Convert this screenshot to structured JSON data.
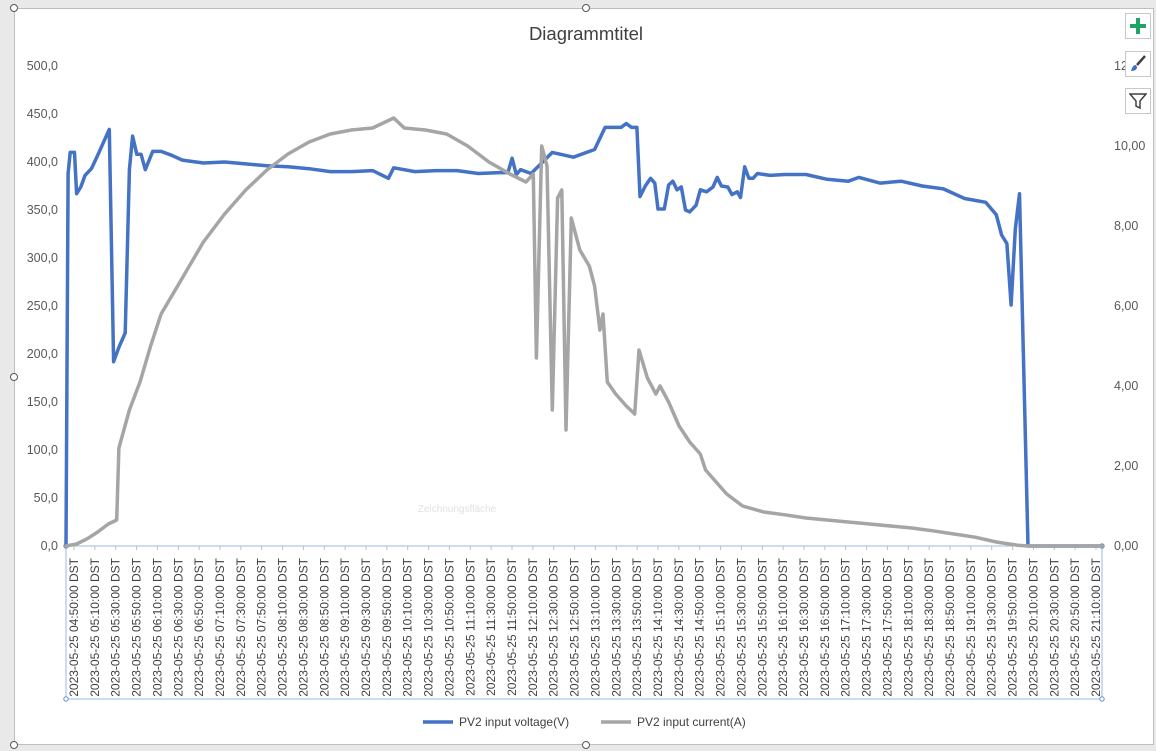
{
  "chart_data": {
    "type": "line",
    "title": "Diagrammtitel",
    "xlabel": "",
    "ylabel": "",
    "y_left_ticks": [
      "0,0",
      "50,0",
      "100,0",
      "150,0",
      "200,0",
      "250,0",
      "300,0",
      "350,0",
      "400,0",
      "450,0",
      "500,0"
    ],
    "y_right_ticks": [
      "0,00",
      "2,00",
      "4,00",
      "6,00",
      "8,00",
      "10,00",
      "12,00"
    ],
    "ylim_left": [
      0,
      500
    ],
    "ylim_right": [
      0,
      12
    ],
    "x_tick_labels": [
      "2023-05-25 04:50:00 DST",
      "2023-05-25 05:10:00 DST",
      "2023-05-25 05:30:00 DST",
      "2023-05-25 05:50:00 DST",
      "2023-05-25 06:10:00 DST",
      "2023-05-25 06:30:00 DST",
      "2023-05-25 06:50:00 DST",
      "2023-05-25 07:10:00 DST",
      "2023-05-25 07:30:00 DST",
      "2023-05-25 07:50:00 DST",
      "2023-05-25 08:10:00 DST",
      "2023-05-25 08:30:00 DST",
      "2023-05-25 08:50:00 DST",
      "2023-05-25 09:10:00 DST",
      "2023-05-25 09:30:00 DST",
      "2023-05-25 09:50:00 DST",
      "2023-05-25 10:10:00 DST",
      "2023-05-25 10:30:00 DST",
      "2023-05-25 10:50:00 DST",
      "2023-05-25 11:10:00 DST",
      "2023-05-25 11:30:00 DST",
      "2023-05-25 11:50:00 DST",
      "2023-05-25 12:10:00 DST",
      "2023-05-25 12:30:00 DST",
      "2023-05-25 12:50:00 DST",
      "2023-05-25 13:10:00 DST",
      "2023-05-25 13:30:00 DST",
      "2023-05-25 13:50:00 DST",
      "2023-05-25 14:10:00 DST",
      "2023-05-25 14:30:00 DST",
      "2023-05-25 14:50:00 DST",
      "2023-05-25 15:10:00 DST",
      "2023-05-25 15:30:00 DST",
      "2023-05-25 15:50:00 DST",
      "2023-05-25 16:10:00 DST",
      "2023-05-25 16:30:00 DST",
      "2023-05-25 16:50:00 DST",
      "2023-05-25 17:10:00 DST",
      "2023-05-25 17:30:00 DST",
      "2023-05-25 17:50:00 DST",
      "2023-05-25 18:10:00 DST",
      "2023-05-25 18:30:00 DST",
      "2023-05-25 18:50:00 DST",
      "2023-05-25 19:10:00 DST",
      "2023-05-25 19:30:00 DST",
      "2023-05-25 19:50:00 DST",
      "2023-05-25 20:10:00 DST",
      "2023-05-25 20:30:00 DST",
      "2023-05-25 20:50:00 DST",
      "2023-05-25 21:10:00 DST"
    ],
    "x_start": "2023-05-25 04:50:00 DST",
    "x_end": "2023-05-25 21:10:00 DST",
    "legend_position": "bottom",
    "grid": false,
    "series": [
      {
        "name": "PV2 input voltage(V)",
        "axis": "left",
        "color": "#4472c4",
        "points": [
          [
            "2023-05-25 04:50:00 DST",
            0
          ],
          [
            "2023-05-25 04:52:00 DST",
            388
          ],
          [
            "2023-05-25 04:54:00 DST",
            410
          ],
          [
            "2023-05-25 04:58:00 DST",
            410
          ],
          [
            "2023-05-25 05:00:00 DST",
            367
          ],
          [
            "2023-05-25 05:04:00 DST",
            374
          ],
          [
            "2023-05-25 05:08:00 DST",
            386
          ],
          [
            "2023-05-25 05:14:00 DST",
            393
          ],
          [
            "2023-05-25 05:20:00 DST",
            407
          ],
          [
            "2023-05-25 05:26:00 DST",
            422
          ],
          [
            "2023-05-25 05:31:00 DST",
            434
          ],
          [
            "2023-05-25 05:35:00 DST",
            192
          ],
          [
            "2023-05-25 05:40:00 DST",
            207
          ],
          [
            "2023-05-25 05:46:00 DST",
            222
          ],
          [
            "2023-05-25 05:50:00 DST",
            392
          ],
          [
            "2023-05-25 05:53:00 DST",
            427
          ],
          [
            "2023-05-25 05:57:00 DST",
            408
          ],
          [
            "2023-05-25 06:01:00 DST",
            408
          ],
          [
            "2023-05-25 06:05:00 DST",
            392
          ],
          [
            "2023-05-25 06:12:00 DST",
            411
          ],
          [
            "2023-05-25 06:20:00 DST",
            411
          ],
          [
            "2023-05-25 06:30:00 DST",
            407
          ],
          [
            "2023-05-25 06:40:00 DST",
            402
          ],
          [
            "2023-05-25 07:00:00 DST",
            399
          ],
          [
            "2023-05-25 07:20:00 DST",
            400
          ],
          [
            "2023-05-25 07:40:00 DST",
            398
          ],
          [
            "2023-05-25 08:00:00 DST",
            396
          ],
          [
            "2023-05-25 08:20:00 DST",
            395
          ],
          [
            "2023-05-25 08:40:00 DST",
            393
          ],
          [
            "2023-05-25 09:00:00 DST",
            390
          ],
          [
            "2023-05-25 09:20:00 DST",
            390
          ],
          [
            "2023-05-25 09:40:00 DST",
            391
          ],
          [
            "2023-05-25 09:55:00 DST",
            383
          ],
          [
            "2023-05-25 10:00:00 DST",
            394
          ],
          [
            "2023-05-25 10:20:00 DST",
            390
          ],
          [
            "2023-05-25 10:40:00 DST",
            391
          ],
          [
            "2023-05-25 11:00:00 DST",
            391
          ],
          [
            "2023-05-25 11:20:00 DST",
            388
          ],
          [
            "2023-05-25 11:40:00 DST",
            389
          ],
          [
            "2023-05-25 11:48:00 DST",
            389
          ],
          [
            "2023-05-25 11:52:00 DST",
            404
          ],
          [
            "2023-05-25 11:56:00 DST",
            387
          ],
          [
            "2023-05-25 12:00:00 DST",
            392
          ],
          [
            "2023-05-25 12:10:00 DST",
            388
          ],
          [
            "2023-05-25 12:30:00 DST",
            410
          ],
          [
            "2023-05-25 12:50:00 DST",
            405
          ],
          [
            "2023-05-25 13:10:00 DST",
            413
          ],
          [
            "2023-05-25 13:20:00 DST",
            436
          ],
          [
            "2023-05-25 13:35:00 DST",
            436
          ],
          [
            "2023-05-25 13:40:00 DST",
            440
          ],
          [
            "2023-05-25 13:45:00 DST",
            436
          ],
          [
            "2023-05-25 13:50:00 DST",
            436
          ],
          [
            "2023-05-25 13:53:00 DST",
            364
          ],
          [
            "2023-05-25 13:58:00 DST",
            375
          ],
          [
            "2023-05-25 14:03:00 DST",
            383
          ],
          [
            "2023-05-25 14:07:00 DST",
            378
          ],
          [
            "2023-05-25 14:10:00 DST",
            351
          ],
          [
            "2023-05-25 14:16:00 DST",
            351
          ],
          [
            "2023-05-25 14:20:00 DST",
            376
          ],
          [
            "2023-05-25 14:24:00 DST",
            380
          ],
          [
            "2023-05-25 14:28:00 DST",
            371
          ],
          [
            "2023-05-25 14:32:00 DST",
            374
          ],
          [
            "2023-05-25 14:36:00 DST",
            350
          ],
          [
            "2023-05-25 14:40:00 DST",
            348
          ],
          [
            "2023-05-25 14:46:00 DST",
            355
          ],
          [
            "2023-05-25 14:50:00 DST",
            371
          ],
          [
            "2023-05-25 14:56:00 DST",
            369
          ],
          [
            "2023-05-25 15:02:00 DST",
            374
          ],
          [
            "2023-05-25 15:06:00 DST",
            384
          ],
          [
            "2023-05-25 15:10:00 DST",
            375
          ],
          [
            "2023-05-25 15:16:00 DST",
            374
          ],
          [
            "2023-05-25 15:20:00 DST",
            366
          ],
          [
            "2023-05-25 15:25:00 DST",
            369
          ],
          [
            "2023-05-25 15:28:00 DST",
            363
          ],
          [
            "2023-05-25 15:32:00 DST",
            395
          ],
          [
            "2023-05-25 15:36:00 DST",
            383
          ],
          [
            "2023-05-25 15:40:00 DST",
            383
          ],
          [
            "2023-05-25 15:44:00 DST",
            388
          ],
          [
            "2023-05-25 15:56:00 DST",
            386
          ],
          [
            "2023-05-25 16:10:00 DST",
            387
          ],
          [
            "2023-05-25 16:30:00 DST",
            387
          ],
          [
            "2023-05-25 16:50:00 DST",
            382
          ],
          [
            "2023-05-25 17:10:00 DST",
            380
          ],
          [
            "2023-05-25 17:20:00 DST",
            384
          ],
          [
            "2023-05-25 17:40:00 DST",
            378
          ],
          [
            "2023-05-25 18:00:00 DST",
            380
          ],
          [
            "2023-05-25 18:20:00 DST",
            375
          ],
          [
            "2023-05-25 18:40:00 DST",
            372
          ],
          [
            "2023-05-25 19:00:00 DST",
            362
          ],
          [
            "2023-05-25 19:10:00 DST",
            360
          ],
          [
            "2023-05-25 19:20:00 DST",
            358
          ],
          [
            "2023-05-25 19:30:00 DST",
            345
          ],
          [
            "2023-05-25 19:35:00 DST",
            324
          ],
          [
            "2023-05-25 19:40:00 DST",
            315
          ],
          [
            "2023-05-25 19:44:00 DST",
            251
          ],
          [
            "2023-05-25 19:48:00 DST",
            330
          ],
          [
            "2023-05-25 19:52:00 DST",
            367
          ],
          [
            "2023-05-25 20:00:00 DST",
            0
          ],
          [
            "2023-05-25 21:10:00 DST",
            0
          ]
        ]
      },
      {
        "name": "PV2 input current(A)",
        "axis": "right",
        "color": "#a5a5a5",
        "points": [
          [
            "2023-05-25 04:50:00 DST",
            0.0
          ],
          [
            "2023-05-25 05:00:00 DST",
            0.05
          ],
          [
            "2023-05-25 05:10:00 DST",
            0.18
          ],
          [
            "2023-05-25 05:20:00 DST",
            0.35
          ],
          [
            "2023-05-25 05:30:00 DST",
            0.55
          ],
          [
            "2023-05-25 05:38:00 DST",
            0.65
          ],
          [
            "2023-05-25 05:40:00 DST",
            2.45
          ],
          [
            "2023-05-25 05:50:00 DST",
            3.4
          ],
          [
            "2023-05-25 06:00:00 DST",
            4.1
          ],
          [
            "2023-05-25 06:10:00 DST",
            5.0
          ],
          [
            "2023-05-25 06:20:00 DST",
            5.8
          ],
          [
            "2023-05-25 06:40:00 DST",
            6.7
          ],
          [
            "2023-05-25 07:00:00 DST",
            7.6
          ],
          [
            "2023-05-25 07:20:00 DST",
            8.3
          ],
          [
            "2023-05-25 07:40:00 DST",
            8.9
          ],
          [
            "2023-05-25 08:00:00 DST",
            9.4
          ],
          [
            "2023-05-25 08:20:00 DST",
            9.8
          ],
          [
            "2023-05-25 08:40:00 DST",
            10.1
          ],
          [
            "2023-05-25 09:00:00 DST",
            10.3
          ],
          [
            "2023-05-25 09:20:00 DST",
            10.4
          ],
          [
            "2023-05-25 09:40:00 DST",
            10.45
          ],
          [
            "2023-05-25 10:00:00 DST",
            10.7
          ],
          [
            "2023-05-25 10:10:00 DST",
            10.45
          ],
          [
            "2023-05-25 10:30:00 DST",
            10.4
          ],
          [
            "2023-05-25 10:50:00 DST",
            10.3
          ],
          [
            "2023-05-25 11:10:00 DST",
            10.0
          ],
          [
            "2023-05-25 11:30:00 DST",
            9.6
          ],
          [
            "2023-05-25 11:50:00 DST",
            9.3
          ],
          [
            "2023-05-25 12:05:00 DST",
            9.1
          ],
          [
            "2023-05-25 12:12:00 DST",
            9.3
          ],
          [
            "2023-05-25 12:15:00 DST",
            4.7
          ],
          [
            "2023-05-25 12:20:00 DST",
            10.0
          ],
          [
            "2023-05-25 12:25:00 DST",
            9.5
          ],
          [
            "2023-05-25 12:30:00 DST",
            3.4
          ],
          [
            "2023-05-25 12:35:00 DST",
            8.7
          ],
          [
            "2023-05-25 12:39:00 DST",
            8.9
          ],
          [
            "2023-05-25 12:43:00 DST",
            2.9
          ],
          [
            "2023-05-25 12:48:00 DST",
            8.2
          ],
          [
            "2023-05-25 12:56:00 DST",
            7.4
          ],
          [
            "2023-05-25 13:05:00 DST",
            7.0
          ],
          [
            "2023-05-25 13:10:00 DST",
            6.5
          ],
          [
            "2023-05-25 13:15:00 DST",
            5.4
          ],
          [
            "2023-05-25 13:18:00 DST",
            5.8
          ],
          [
            "2023-05-25 13:22:00 DST",
            4.1
          ],
          [
            "2023-05-25 13:30:00 DST",
            3.8
          ],
          [
            "2023-05-25 13:40:00 DST",
            3.5
          ],
          [
            "2023-05-25 13:48:00 DST",
            3.3
          ],
          [
            "2023-05-25 13:52:00 DST",
            4.9
          ],
          [
            "2023-05-25 14:00:00 DST",
            4.2
          ],
          [
            "2023-05-25 14:08:00 DST",
            3.8
          ],
          [
            "2023-05-25 14:12:00 DST",
            4.0
          ],
          [
            "2023-05-25 14:20:00 DST",
            3.6
          ],
          [
            "2023-05-25 14:30:00 DST",
            3.0
          ],
          [
            "2023-05-25 14:40:00 DST",
            2.6
          ],
          [
            "2023-05-25 14:50:00 DST",
            2.3
          ],
          [
            "2023-05-25 14:55:00 DST",
            1.9
          ],
          [
            "2023-05-25 15:05:00 DST",
            1.6
          ],
          [
            "2023-05-25 15:15:00 DST",
            1.3
          ],
          [
            "2023-05-25 15:30:00 DST",
            1.0
          ],
          [
            "2023-05-25 15:50:00 DST",
            0.85
          ],
          [
            "2023-05-25 16:10:00 DST",
            0.78
          ],
          [
            "2023-05-25 16:30:00 DST",
            0.7
          ],
          [
            "2023-05-25 16:50:00 DST",
            0.65
          ],
          [
            "2023-05-25 17:10:00 DST",
            0.6
          ],
          [
            "2023-05-25 17:30:00 DST",
            0.55
          ],
          [
            "2023-05-25 17:50:00 DST",
            0.5
          ],
          [
            "2023-05-25 18:10:00 DST",
            0.45
          ],
          [
            "2023-05-25 18:30:00 DST",
            0.38
          ],
          [
            "2023-05-25 18:50:00 DST",
            0.3
          ],
          [
            "2023-05-25 19:10:00 DST",
            0.22
          ],
          [
            "2023-05-25 19:30:00 DST",
            0.1
          ],
          [
            "2023-05-25 19:50:00 DST",
            0.02
          ],
          [
            "2023-05-25 20:00:00 DST",
            0.0
          ],
          [
            "2023-05-25 21:10:00 DST",
            0.0
          ]
        ]
      }
    ]
  },
  "overlay": {
    "plot_area_label": "Zeichnungsfläche"
  },
  "side_buttons": {
    "add_element": "chart-elements-plus-icon",
    "styles": "chart-styles-brush-icon",
    "filters": "chart-filters-funnel-icon"
  },
  "colors": {
    "accent_green": "#21a366"
  }
}
